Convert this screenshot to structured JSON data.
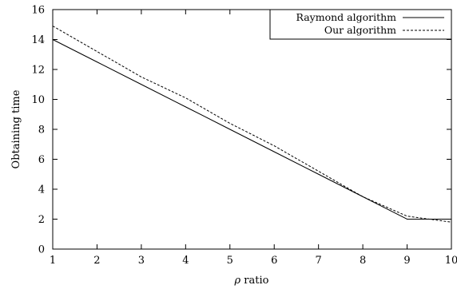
{
  "chart_data": {
    "type": "line",
    "xlabel_symbol": "ρ",
    "xlabel_text": " ratio",
    "ylabel": "Obtaining time",
    "xlim": [
      1,
      10
    ],
    "ylim": [
      0,
      16
    ],
    "xticks": [
      1,
      2,
      3,
      4,
      5,
      6,
      7,
      8,
      9,
      10
    ],
    "yticks": [
      0,
      2,
      4,
      6,
      8,
      10,
      12,
      14,
      16
    ],
    "grid": false,
    "legend_position": "top-right",
    "x": [
      1,
      2,
      3,
      4,
      5,
      6,
      7,
      8,
      9,
      10
    ],
    "series": [
      {
        "name": "Raymond algorithm",
        "style": "solid",
        "color": "#000000",
        "values": [
          14.0,
          12.5,
          11.0,
          9.5,
          8.0,
          6.5,
          5.0,
          3.5,
          2.0,
          2.0
        ]
      },
      {
        "name": "Our algorithm",
        "style": "dashed",
        "color": "#000000",
        "values": [
          14.9,
          13.2,
          11.5,
          10.1,
          8.4,
          6.9,
          5.2,
          3.5,
          2.2,
          1.8
        ]
      }
    ]
  }
}
